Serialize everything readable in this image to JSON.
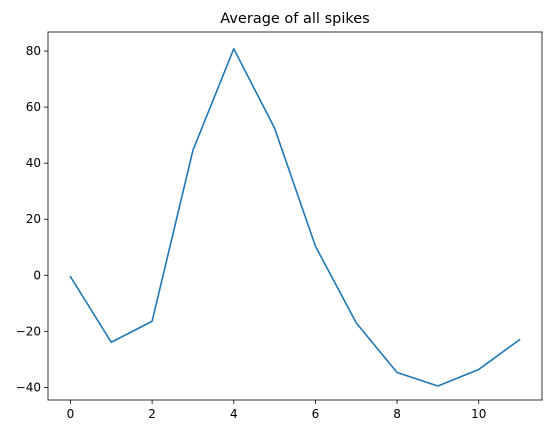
{
  "chart_data": {
    "type": "line",
    "title": "Average of all spikes",
    "xlabel": "",
    "ylabel": "",
    "xlim": [
      -0.55,
      11.55
    ],
    "ylim": [
      -44.5,
      86.8
    ],
    "xticks": [
      0,
      2,
      4,
      6,
      8,
      10
    ],
    "yticks": [
      -40,
      -20,
      0,
      20,
      40,
      60,
      80
    ],
    "grid": false,
    "series": [
      {
        "color": "#1f77b4",
        "x": [
          0,
          1,
          2,
          3,
          4,
          5,
          6,
          7,
          8,
          9,
          10,
          11
        ],
        "y": [
          -0.5,
          -23.9,
          -16.4,
          44.6,
          80.8,
          52.5,
          10.4,
          -17.0,
          -34.7,
          -39.5,
          -33.6,
          -23.0
        ]
      }
    ]
  }
}
